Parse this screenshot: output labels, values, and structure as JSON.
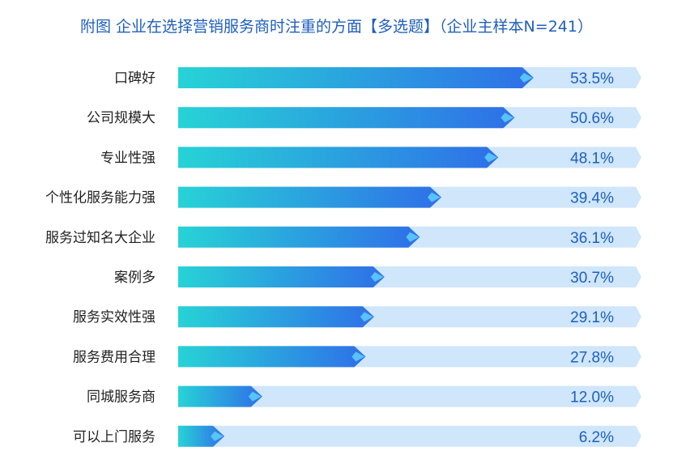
{
  "title": "附图  企业在选择营销服务商时注重的方面【多选题】（企业主样本N=241）",
  "chart_data": {
    "type": "bar",
    "orientation": "horizontal",
    "title": "附图  企业在选择营销服务商时注重的方面【多选题】（企业主样本N=241）",
    "categories": [
      "口碑好",
      "公司规模大",
      "专业性强",
      "个性化服务能力强",
      "服务过知名大企业",
      "案例多",
      "服务实效性强",
      "服务费用合理",
      "同城服务商",
      "可以上门服务"
    ],
    "values": [
      53.5,
      50.6,
      48.1,
      39.4,
      36.1,
      30.7,
      29.1,
      27.8,
      12.0,
      6.2
    ],
    "value_labels": [
      "53.5%",
      "50.6%",
      "48.1%",
      "39.4%",
      "36.1%",
      "30.7%",
      "29.1%",
      "27.8%",
      "12.0%",
      "6.2%"
    ],
    "unit": "%",
    "xlim": [
      0,
      70
    ],
    "colors": {
      "bar_start": "#27d3d6",
      "bar_end": "#2f6fe8",
      "track": "#cfe6fb",
      "value_text": "#1f5fbf",
      "category_text": "#222222"
    }
  }
}
